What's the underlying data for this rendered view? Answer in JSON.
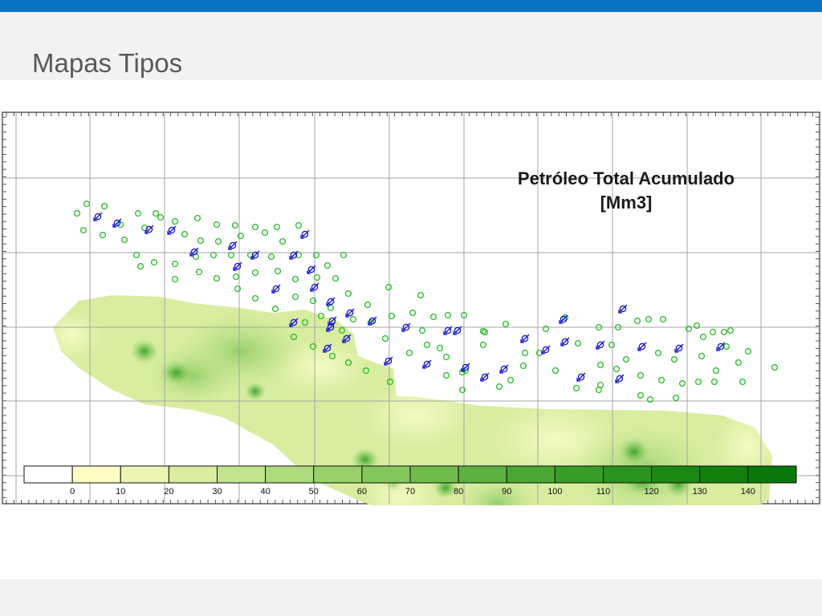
{
  "slide": {
    "title": "Mapas Tipos"
  },
  "map": {
    "title_line1": "Petróleo Total Acumulado",
    "title_line2": "[Mm3]",
    "colors": {
      "grid": "#a6a6a6",
      "producer_well": "#22bb22",
      "injector_well": "#1111cc"
    },
    "legend": {
      "ticks": [
        "0",
        "10",
        "20",
        "30",
        "40",
        "50",
        "60",
        "70",
        "80",
        "90",
        "100",
        "110",
        "120",
        "130",
        "140"
      ],
      "colors": [
        "#ffffff",
        "#fdfdc4",
        "#ecf5b2",
        "#d8eda0",
        "#c2e48e",
        "#aedb7e",
        "#98d06c",
        "#84c75c",
        "#70bd4e",
        "#5cb240",
        "#4aa733",
        "#389c28",
        "#2a921e",
        "#1c8814",
        "#117f0c",
        "#0a770a"
      ]
    }
  }
}
